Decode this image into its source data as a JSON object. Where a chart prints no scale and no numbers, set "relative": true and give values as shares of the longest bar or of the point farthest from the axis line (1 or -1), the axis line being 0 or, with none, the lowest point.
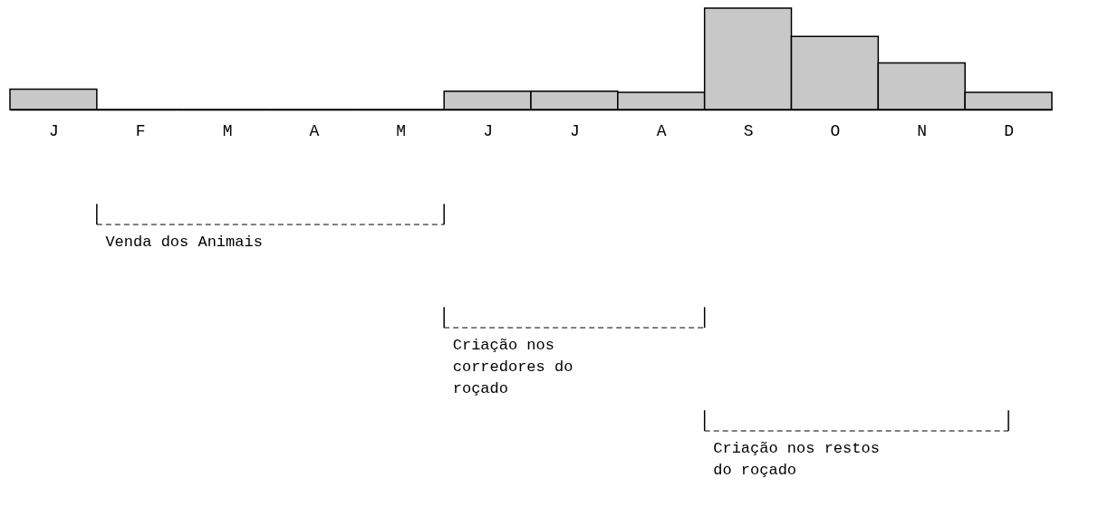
{
  "chart_data": {
    "type": "bar",
    "relative": true,
    "categories": [
      "J",
      "F",
      "M",
      "A",
      "M",
      "J",
      "J",
      "A",
      "S",
      "O",
      "N",
      "D"
    ],
    "values": [
      0.2,
      0,
      0,
      0,
      0,
      0.18,
      0.18,
      0.17,
      1,
      0.72,
      0.46,
      0.17
    ],
    "color": "#c8c8c8",
    "annotations": [
      "Venda dos Animais",
      "Criação nos corredores do roçado",
      "Criação nos restos do roçado"
    ]
  }
}
